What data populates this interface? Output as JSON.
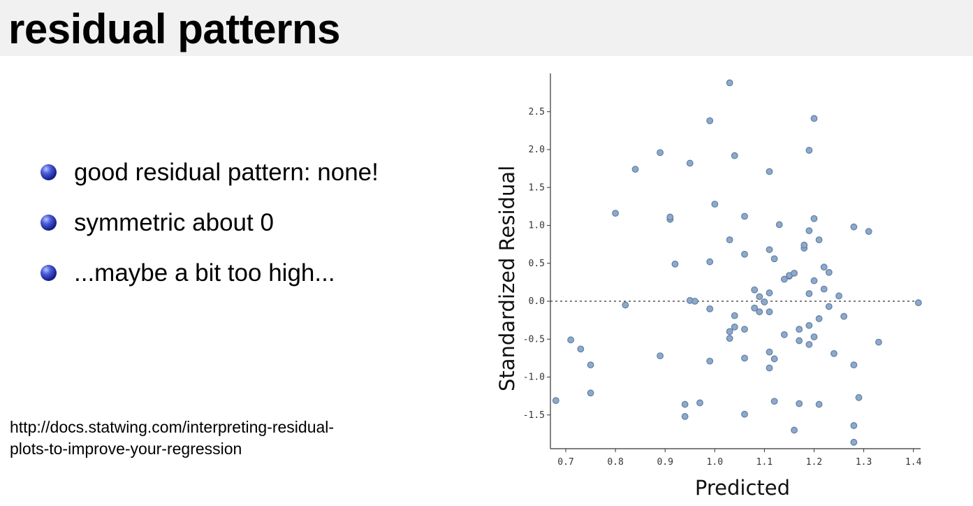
{
  "slide": {
    "title": "residual patterns",
    "bullets": [
      "good residual pattern: none!",
      "symmetric about 0",
      "...maybe a bit too high..."
    ],
    "source_lines": [
      "http://docs.statwing.com/interpreting-residual-",
      "plots-to-improve-your-regression"
    ]
  },
  "chart_data": {
    "type": "scatter",
    "xlabel": "Predicted",
    "ylabel": "Standardized Residual",
    "xlim": [
      0.68,
      1.42
    ],
    "ylim": [
      -1.93,
      3.0
    ],
    "x_ticks": [
      "0.7",
      "0.8",
      "0.9",
      "1.0",
      "1.1",
      "1.2",
      "1.3",
      "1.4"
    ],
    "y_ticks": [
      "2.5",
      "2.0",
      "1.5",
      "1.0",
      "0.5",
      "0.0",
      "-0.5",
      "-1.0",
      "-1.5"
    ],
    "reference_line_y": 0.0,
    "point_color": "#8ea9c9",
    "point_edge_color": "#5f7fa3",
    "points": [
      [
        0.68,
        -1.31
      ],
      [
        0.71,
        -0.51
      ],
      [
        0.73,
        -0.63
      ],
      [
        0.75,
        -0.84
      ],
      [
        0.75,
        -1.21
      ],
      [
        0.8,
        1.16
      ],
      [
        0.82,
        -0.05
      ],
      [
        0.84,
        1.74
      ],
      [
        0.89,
        1.96
      ],
      [
        0.89,
        -0.72
      ],
      [
        0.91,
        1.08
      ],
      [
        0.91,
        1.11
      ],
      [
        0.92,
        0.49
      ],
      [
        0.94,
        -1.52
      ],
      [
        0.94,
        -1.36
      ],
      [
        0.95,
        1.82
      ],
      [
        0.95,
        0.01
      ],
      [
        0.96,
        0.0
      ],
      [
        0.97,
        -1.34
      ],
      [
        0.99,
        2.38
      ],
      [
        0.99,
        0.52
      ],
      [
        0.99,
        -0.1
      ],
      [
        0.99,
        -0.79
      ],
      [
        1.0,
        1.28
      ],
      [
        1.03,
        2.88
      ],
      [
        1.03,
        0.81
      ],
      [
        1.03,
        -0.4
      ],
      [
        1.03,
        -0.49
      ],
      [
        1.04,
        1.92
      ],
      [
        1.04,
        -0.19
      ],
      [
        1.04,
        -0.34
      ],
      [
        1.06,
        1.12
      ],
      [
        1.06,
        0.62
      ],
      [
        1.06,
        -0.37
      ],
      [
        1.06,
        -0.75
      ],
      [
        1.06,
        -1.49
      ],
      [
        1.08,
        0.15
      ],
      [
        1.08,
        -0.09
      ],
      [
        1.09,
        -0.14
      ],
      [
        1.09,
        0.06
      ],
      [
        1.1,
        -0.01
      ],
      [
        1.11,
        1.71
      ],
      [
        1.11,
        0.68
      ],
      [
        1.11,
        0.11
      ],
      [
        1.11,
        -0.14
      ],
      [
        1.11,
        -0.67
      ],
      [
        1.11,
        -0.88
      ],
      [
        1.12,
        -1.32
      ],
      [
        1.12,
        0.56
      ],
      [
        1.12,
        -0.76
      ],
      [
        1.13,
        1.01
      ],
      [
        1.14,
        -0.44
      ],
      [
        1.14,
        0.29
      ],
      [
        1.15,
        0.33
      ],
      [
        1.15,
        0.34
      ],
      [
        1.16,
        0.37
      ],
      [
        1.16,
        -1.7
      ],
      [
        1.17,
        -0.37
      ],
      [
        1.17,
        -0.52
      ],
      [
        1.17,
        -1.35
      ],
      [
        1.18,
        0.7
      ],
      [
        1.18,
        0.74
      ],
      [
        1.19,
        1.99
      ],
      [
        1.19,
        0.93
      ],
      [
        1.19,
        0.1
      ],
      [
        1.19,
        -0.32
      ],
      [
        1.19,
        -0.57
      ],
      [
        1.2,
        2.41
      ],
      [
        1.2,
        1.09
      ],
      [
        1.2,
        0.27
      ],
      [
        1.2,
        -0.47
      ],
      [
        1.21,
        0.81
      ],
      [
        1.21,
        -0.23
      ],
      [
        1.21,
        -1.36
      ],
      [
        1.22,
        0.45
      ],
      [
        1.22,
        0.16
      ],
      [
        1.23,
        0.38
      ],
      [
        1.23,
        -0.07
      ],
      [
        1.24,
        -0.69
      ],
      [
        1.25,
        0.07
      ],
      [
        1.26,
        -0.2
      ],
      [
        1.28,
        0.98
      ],
      [
        1.28,
        -0.84
      ],
      [
        1.28,
        -1.64
      ],
      [
        1.28,
        -1.86
      ],
      [
        1.29,
        -1.27
      ],
      [
        1.31,
        0.92
      ],
      [
        1.33,
        -0.54
      ],
      [
        1.41,
        -0.02
      ]
    ]
  }
}
